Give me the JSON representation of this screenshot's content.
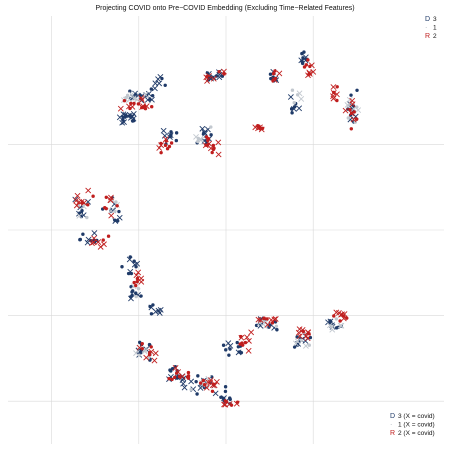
{
  "chart_data": {
    "type": "scatter",
    "title": "Projecting COVID onto Pre−COVID Embedding (Excluding Time−Related Features)",
    "xlabel": "",
    "ylabel": "",
    "xlim": [
      0,
      100
    ],
    "ylim": [
      0,
      100
    ],
    "grid": true,
    "x_gridlines": [
      10,
      30,
      50,
      70
    ],
    "y_gridlines": [
      10,
      30,
      50,
      70
    ],
    "legend_top": {
      "position": "top-right",
      "entries": [
        {
          "glyph": "D",
          "label": "3",
          "color": "#1f3a68"
        },
        {
          "glyph": "·",
          "label": "1",
          "color": "#9aa3ad"
        },
        {
          "glyph": "R",
          "label": "2",
          "color": "#c01e1e"
        }
      ]
    },
    "legend_bottom": {
      "position": "bottom-right",
      "entries": [
        {
          "glyph": "D",
          "label": "3  (X = covid)",
          "color": "#1f3a68"
        },
        {
          "glyph": "·",
          "label": "1  (X = covid)",
          "color": "#9aa3ad"
        },
        {
          "glyph": "R",
          "label": "2  (X = covid)",
          "color": "#c01e1e"
        }
      ]
    },
    "series": [
      {
        "label": "3",
        "color": "#1f3a68",
        "clusters": [
          [
            30,
            81,
            6,
            2,
            18
          ],
          [
            27,
            76,
            4,
            2,
            18
          ],
          [
            37,
            72,
            3,
            3,
            10
          ],
          [
            45,
            72,
            3,
            3,
            12
          ],
          [
            35,
            84,
            3,
            2,
            8
          ],
          [
            47,
            86,
            4,
            2,
            12
          ],
          [
            61,
            86,
            2,
            2,
            8
          ],
          [
            66,
            80,
            2,
            4,
            8
          ],
          [
            68,
            90,
            1.5,
            3,
            10
          ],
          [
            79,
            78,
            2,
            5,
            12
          ],
          [
            17,
            55,
            3,
            3,
            10
          ],
          [
            19,
            48,
            4,
            2,
            10
          ],
          [
            24,
            55,
            3,
            4,
            10
          ],
          [
            28,
            42,
            2,
            3,
            10
          ],
          [
            29,
            35,
            2,
            3,
            10
          ],
          [
            34,
            32,
            2,
            2,
            8
          ],
          [
            31,
            22,
            3,
            3,
            12
          ],
          [
            38,
            16,
            4,
            3,
            14
          ],
          [
            44,
            14,
            4,
            3,
            14
          ],
          [
            50,
            11,
            2,
            3,
            10
          ],
          [
            51,
            22,
            3,
            3,
            12
          ],
          [
            59,
            28,
            4,
            2,
            10
          ],
          [
            67,
            24,
            4,
            2,
            10
          ],
          [
            75,
            28,
            3,
            2,
            10
          ]
        ],
        "x_marker_fraction": 0.45
      },
      {
        "label": "1",
        "color": "#c2c8cf",
        "clusters": [
          [
            30,
            81,
            6,
            2,
            10
          ],
          [
            45,
            72,
            3,
            3,
            6
          ],
          [
            66,
            80,
            2,
            4,
            5
          ],
          [
            79,
            78,
            2,
            5,
            8
          ],
          [
            17,
            55,
            3,
            3,
            5
          ],
          [
            24,
            55,
            3,
            4,
            5
          ],
          [
            31,
            22,
            3,
            3,
            6
          ],
          [
            44,
            14,
            4,
            3,
            6
          ],
          [
            59,
            28,
            4,
            2,
            6
          ],
          [
            67,
            24,
            4,
            2,
            6
          ],
          [
            75,
            28,
            3,
            2,
            6
          ],
          [
            29,
            35,
            2,
            3,
            4
          ]
        ],
        "x_marker_fraction": 0.55
      },
      {
        "label": "2",
        "color": "#c01e1e",
        "clusters": [
          [
            30,
            79,
            6,
            2,
            18
          ],
          [
            36,
            70,
            3,
            3,
            10
          ],
          [
            46,
            70,
            3,
            3,
            14
          ],
          [
            58,
            74,
            3,
            1,
            8
          ],
          [
            47,
            86,
            4,
            2,
            8
          ],
          [
            61,
            86,
            2,
            2,
            6
          ],
          [
            69,
            88,
            2,
            4,
            10
          ],
          [
            75,
            82,
            2,
            4,
            8
          ],
          [
            79,
            78,
            2,
            5,
            10
          ],
          [
            17,
            57,
            3,
            3,
            10
          ],
          [
            21,
            47,
            4,
            2,
            8
          ],
          [
            24,
            55,
            3,
            4,
            8
          ],
          [
            30,
            38,
            2,
            3,
            8
          ],
          [
            32,
            22,
            3,
            3,
            10
          ],
          [
            40,
            16,
            4,
            3,
            12
          ],
          [
            46,
            14,
            4,
            3,
            12
          ],
          [
            51,
            10,
            2,
            3,
            8
          ],
          [
            54,
            24,
            3,
            3,
            10
          ],
          [
            59,
            29,
            4,
            2,
            10
          ],
          [
            68,
            26,
            4,
            2,
            10
          ],
          [
            76,
            30,
            3,
            2,
            10
          ]
        ],
        "x_marker_fraction": 0.45
      }
    ]
  }
}
